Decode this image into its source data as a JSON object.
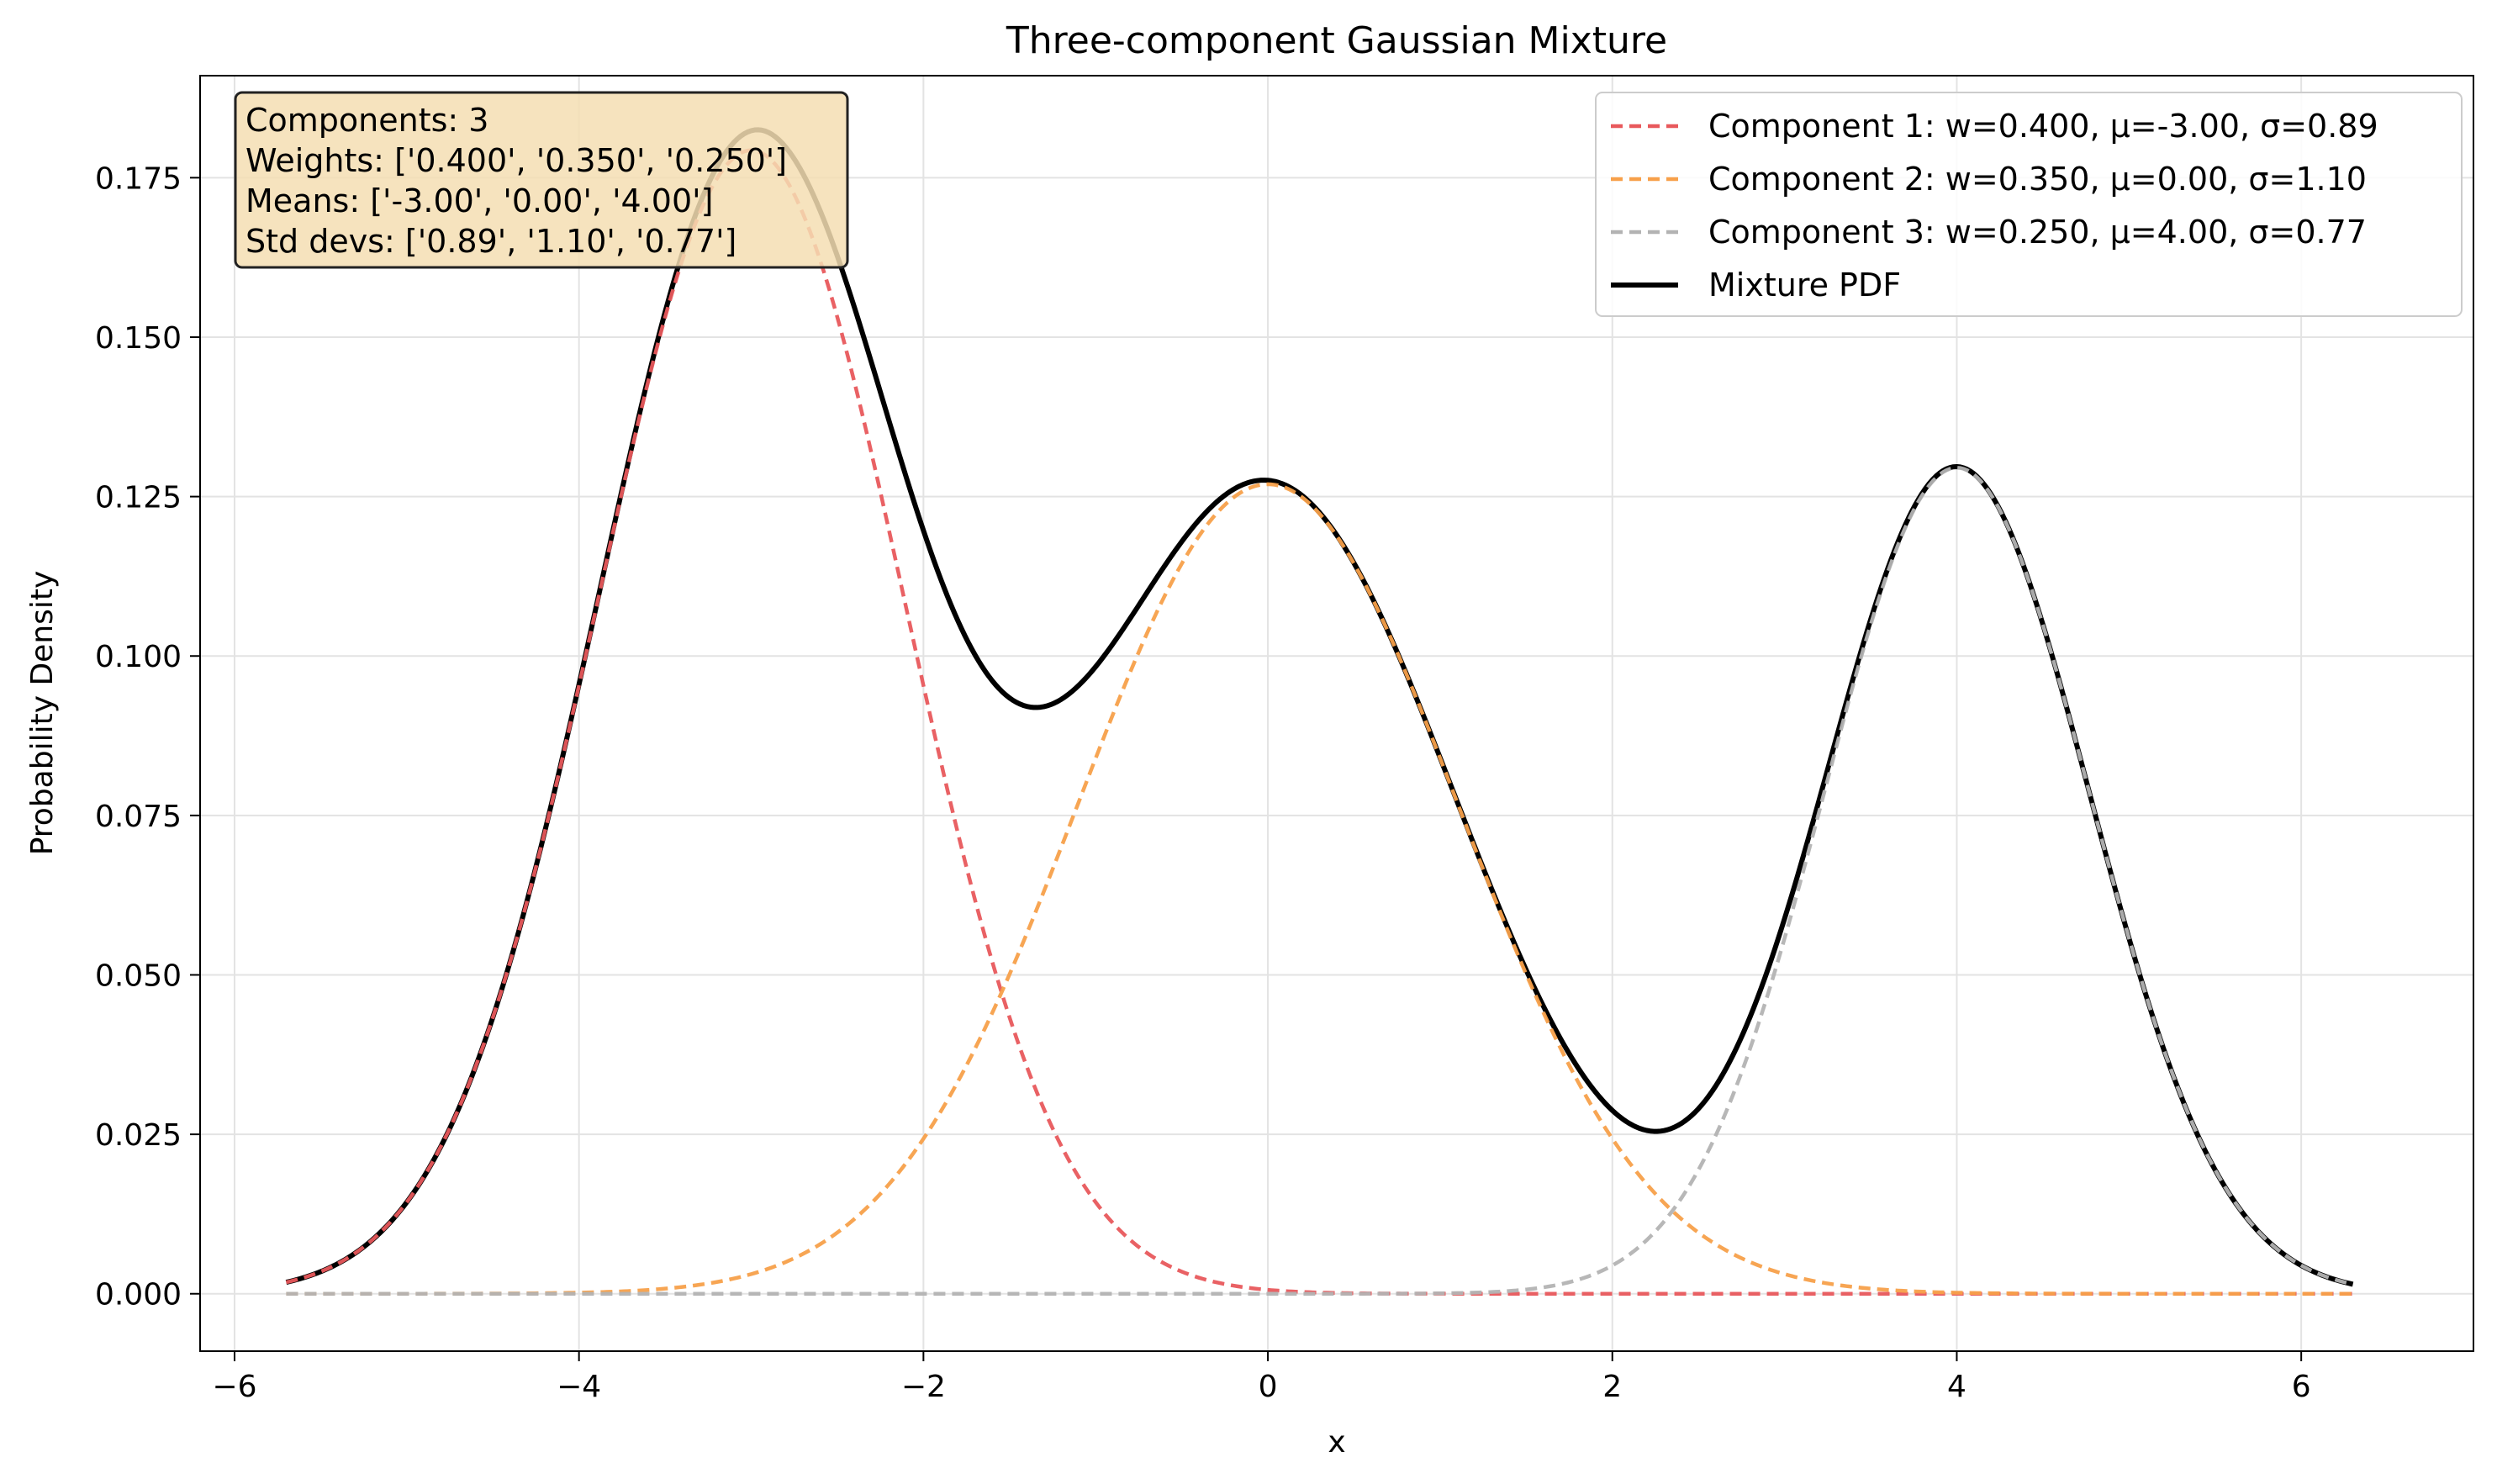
{
  "chart_data": {
    "type": "line",
    "title": "Three-component Gaussian Mixture",
    "xlabel": "x",
    "ylabel": "Probability Density",
    "xlim": [
      -6.2,
      7.0
    ],
    "ylim": [
      -0.009,
      0.191
    ],
    "x_range": [
      -5.7,
      6.3
    ],
    "xticks": [
      -6,
      -4,
      -2,
      0,
      2,
      4,
      6
    ],
    "xtick_labels": [
      "−6",
      "−4",
      "−2",
      "0",
      "2",
      "4",
      "6"
    ],
    "yticks": [
      0.0,
      0.025,
      0.05,
      0.075,
      0.1,
      0.125,
      0.15,
      0.175
    ],
    "ytick_labels": [
      "0.000",
      "0.025",
      "0.050",
      "0.075",
      "0.100",
      "0.125",
      "0.150",
      "0.175"
    ],
    "grid": true,
    "legend_position": "top-right",
    "series": [
      {
        "name": "Component 1: w=0.400, μ=-3.00, σ=0.89",
        "weight": 0.4,
        "mean": -3.0,
        "std": 0.89,
        "style": "dashed",
        "color": "#e8595c"
      },
      {
        "name": "Component 2: w=0.350, μ=0.00, σ=1.10",
        "weight": 0.35,
        "mean": 0.0,
        "std": 1.1,
        "style": "dashed",
        "color": "#f7a04a"
      },
      {
        "name": "Component 3: w=0.250, μ=4.00, σ=0.77",
        "weight": 0.25,
        "mean": 4.0,
        "std": 0.77,
        "style": "dashed",
        "color": "#b3b3b3"
      },
      {
        "name": "Mixture PDF",
        "style": "solid",
        "color": "#000000"
      }
    ],
    "info_box": {
      "lines": [
        "Components: 3",
        "Weights: ['0.400', '0.350', '0.250']",
        "Means: ['-3.00', '0.00', '4.00']",
        "Std devs: ['0.89', '1.10', '0.77']"
      ],
      "background": "#f5deb3"
    }
  }
}
